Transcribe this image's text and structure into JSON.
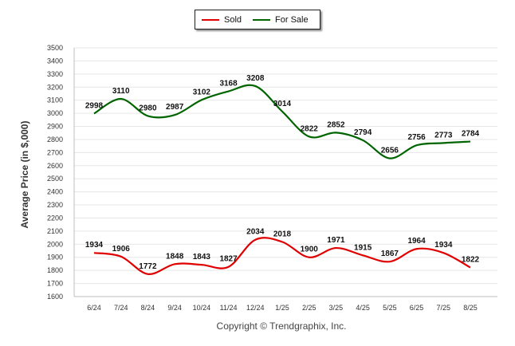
{
  "chart_data": {
    "type": "line",
    "categories": [
      "6/24",
      "7/24",
      "8/24",
      "9/24",
      "10/24",
      "11/24",
      "12/24",
      "1/25",
      "2/25",
      "3/25",
      "4/25",
      "5/25",
      "6/25",
      "7/25",
      "8/25"
    ],
    "series": [
      {
        "name": "Sold",
        "color": "#e00000",
        "values": [
          1934,
          1906,
          1772,
          1848,
          1843,
          1827,
          2034,
          2018,
          1900,
          1971,
          1915,
          1867,
          1964,
          1934,
          1822
        ]
      },
      {
        "name": "For Sale",
        "color": "#006400",
        "values": [
          2998,
          3110,
          2980,
          2987,
          3102,
          3168,
          3208,
          3014,
          2822,
          2852,
          2794,
          2656,
          2756,
          2773,
          2784
        ]
      }
    ],
    "ylabel": "Average Price (in $,000)",
    "ylim": [
      1600,
      3500
    ],
    "yticks": [
      1600,
      1700,
      1800,
      1900,
      2000,
      2100,
      2200,
      2300,
      2400,
      2500,
      2600,
      2700,
      2800,
      2900,
      3000,
      3100,
      3200,
      3300,
      3400,
      3500
    ],
    "grid": true,
    "legend_position": "top-center"
  },
  "legend": {
    "sold": "Sold",
    "for_sale": "For Sale"
  },
  "footer": "Copyright © Trendgraphix, Inc."
}
